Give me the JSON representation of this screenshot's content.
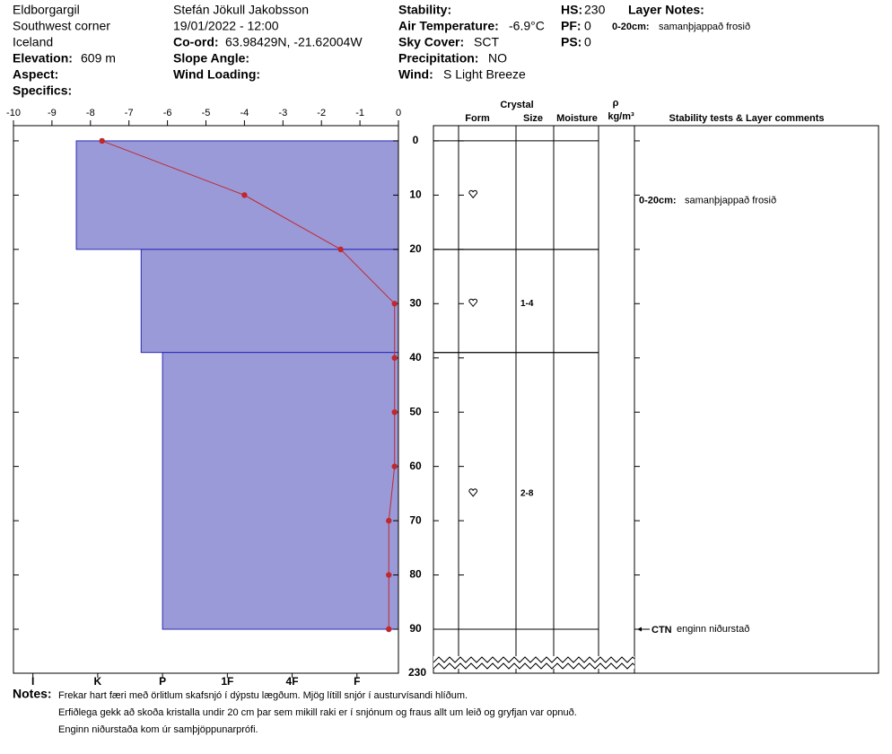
{
  "header": {
    "location": [
      "Eldborgargil",
      "Southwest corner",
      "Iceland"
    ],
    "elevation": {
      "label": "Elevation:",
      "value": "609 m"
    },
    "aspect": {
      "label": "Aspect:"
    },
    "specifics": {
      "label": "Specifics:"
    },
    "observer": "Stefán Jökull Jakobsson",
    "datetime": "19/01/2022 - 12:00",
    "coord": {
      "label": "Co-ord:",
      "value": "63.98429N, -21.62004W"
    },
    "slope_angle": {
      "label": "Slope Angle:"
    },
    "wind_loading": {
      "label": "Wind Loading:"
    },
    "stability": {
      "label": "Stability:"
    },
    "air_temperature": {
      "label": "Air Temperature:",
      "value": "-6.9°C"
    },
    "sky_cover": {
      "label": "Sky Cover:",
      "value": "SCT"
    },
    "precipitation": {
      "label": "Precipitation:",
      "value": "NO"
    },
    "wind": {
      "label": "Wind:",
      "value": "S Light Breeze"
    },
    "hs": {
      "label": "HS:",
      "value": "230"
    },
    "pf": {
      "label": "PF:",
      "value": "0"
    },
    "ps": {
      "label": "PS:",
      "value": "0"
    },
    "layer_notes": {
      "label": "Layer Notes:",
      "range": "0-20cm:",
      "text": "samanþjappað frosið"
    }
  },
  "chart_data": {
    "type": "snow-profile",
    "xlim": [
      -10,
      0
    ],
    "xticks": [
      -10,
      -9,
      -8,
      -7,
      -6,
      -5,
      -4,
      -3,
      -2,
      -1,
      0
    ],
    "ylim": [
      -2.8,
      90
    ],
    "yticks": [
      0,
      10,
      20,
      30,
      40,
      50,
      60,
      70,
      80,
      90
    ],
    "ground_depth": 230,
    "temperature": {
      "color": "#c0282d",
      "depths": [
        0,
        10,
        20,
        30,
        40,
        50,
        60,
        70,
        80,
        90
      ],
      "values": [
        -7.7,
        -4,
        -1.5,
        -0.1,
        -0.1,
        -0.1,
        -0.1,
        -0.25,
        -0.25,
        -0.25
      ]
    },
    "hardness": {
      "xlim": [
        6.3,
        0.36
      ],
      "color": "#9a9ad8",
      "edge_color": "#2a2ab8",
      "xticks": [
        {
          "value": 6,
          "label": "I"
        },
        {
          "value": 5,
          "label": "K"
        },
        {
          "value": 4,
          "label": "P"
        },
        {
          "value": 3,
          "label": "1F"
        },
        {
          "value": 2,
          "label": "4F"
        },
        {
          "value": 1,
          "label": "F"
        }
      ]
    },
    "layers": [
      {
        "top": 0,
        "bottom": 20,
        "hardness": 5.33
      },
      {
        "top": 20,
        "bottom": 39,
        "hardness": 4.33
      },
      {
        "top": 39,
        "bottom": 90,
        "hardness": 4
      }
    ],
    "grains": [
      {
        "depth": 10
      },
      {
        "depth": 30,
        "size": "1-4"
      },
      {
        "depth": 65,
        "size": "2-8"
      }
    ],
    "columns": {
      "crystal": "Crystal",
      "form": "Form",
      "size": "Size",
      "moisture": "Moisture",
      "density_symbol": "ρ",
      "density_unit": "kg/m³",
      "comments": "Stability tests & Layer comments"
    },
    "layer_comment": {
      "depth": 11,
      "range": "0-20cm:",
      "text": "samanþjappað frosið"
    },
    "stability_test": {
      "depth": 90,
      "code": "CTN",
      "result": "enginn niðurstað"
    }
  },
  "notes": {
    "label": "Notes:",
    "lines": [
      "Frekar hart færi með örlitlum skafsnjó í dýpstu lægðum. Mjög lítill snjór í austurvísandi hlíðum.",
      "Erfiðlega gekk að skoða kristalla undir 20 cm þar sem mikill raki er í snjónum og fraus allt um leið og gryfjan var opnuð.",
      "Enginn niðurstaða kom úr samþjöppunarprófi."
    ]
  }
}
